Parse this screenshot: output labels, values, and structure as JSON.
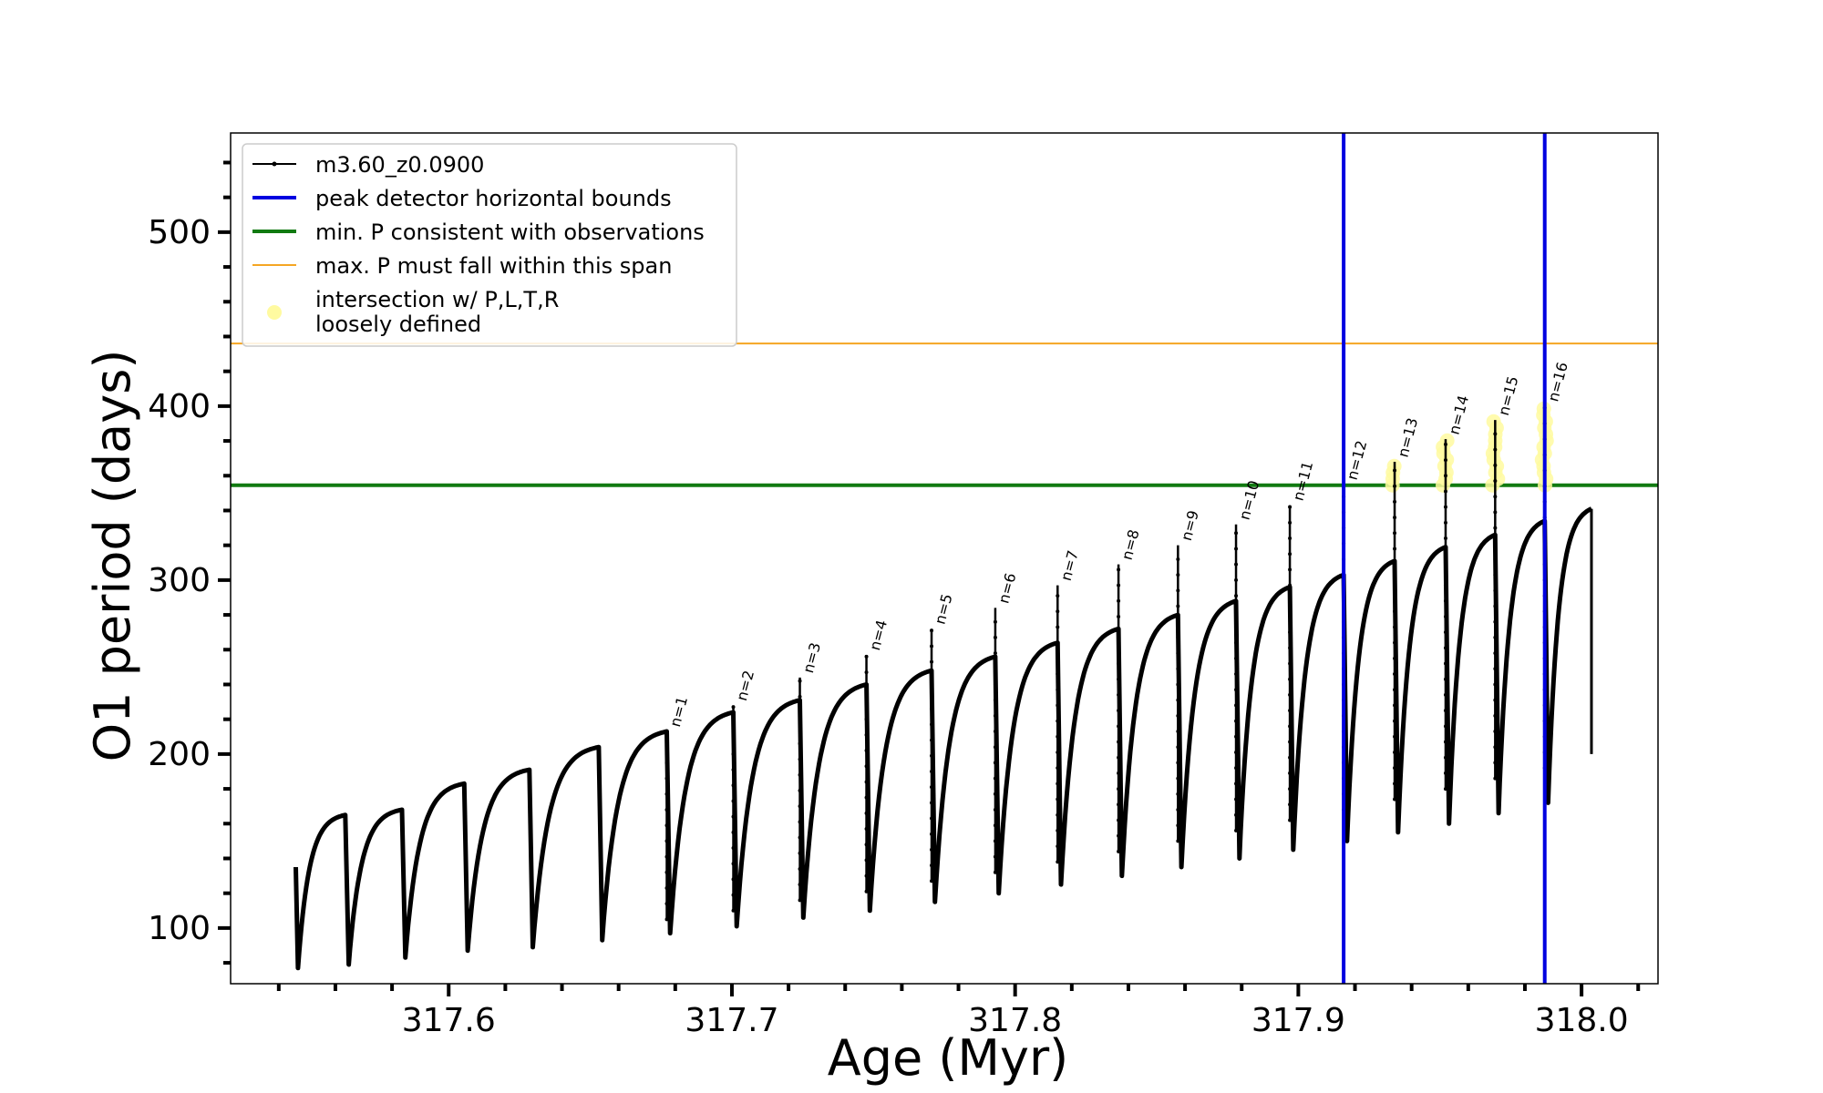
{
  "chart_data": {
    "type": "line",
    "xlabel": "Age (Myr)",
    "ylabel": "O1 period (days)",
    "xlim": [
      317.523,
      318.027
    ],
    "ylim": [
      68,
      557
    ],
    "x_ticks": [
      317.6,
      317.7,
      317.8,
      317.9,
      318.0
    ],
    "x_tick_labels": [
      "317.6",
      "317.7",
      "317.8",
      "317.9",
      "318.0"
    ],
    "y_ticks": [
      100,
      200,
      300,
      400,
      500
    ],
    "y_tick_labels": [
      "100",
      "200",
      "300",
      "400",
      "500"
    ],
    "legend": {
      "placement": "top-left",
      "entries": [
        {
          "label": "m3.60_z0.0900",
          "style": "line-marker",
          "color": "#000000"
        },
        {
          "label": "peak detector horizontal bounds",
          "style": "line",
          "color": "#0000e0"
        },
        {
          "label": "min. P consistent with observations",
          "style": "line",
          "color": "#117a11"
        },
        {
          "label": "max. P must fall within this span",
          "style": "line",
          "color": "#f5a623"
        },
        {
          "label": "intersection w/ P,L,T,R",
          "label2": "loosely defined",
          "style": "marker",
          "color": "#fffaa0"
        }
      ]
    },
    "vertical_lines": {
      "color": "#0000e0",
      "x": [
        317.916,
        317.987
      ]
    },
    "horizontal_lines": [
      {
        "y": 354.5,
        "color": "#117a11"
      },
      {
        "y": 436,
        "color": "#f5a623"
      }
    ],
    "series": [
      {
        "name": "m3.60_z0.0900",
        "color": "#000000",
        "start_x": 317.546,
        "start_y": 135,
        "cycles": [
          {
            "end": 317.5635,
            "min": 77,
            "max": 165,
            "rise": 80,
            "low": 80
          },
          {
            "end": 317.5835,
            "min": 79,
            "max": 168,
            "rise": 81,
            "low": 81
          },
          {
            "end": 317.6055,
            "min": 83,
            "max": 183,
            "rise": 85,
            "low": 85
          },
          {
            "end": 317.6285,
            "min": 87,
            "max": 191,
            "rise": 89,
            "low": 89
          },
          {
            "end": 317.653,
            "min": 89,
            "max": 204,
            "rise": 91,
            "low": 91
          },
          {
            "end": 317.677,
            "min": 93,
            "max": 213,
            "rise": 95,
            "low": 95
          },
          {
            "end": 317.7005,
            "min": 97,
            "max": 224,
            "rise": 99,
            "low": 99
          },
          {
            "end": 317.724,
            "min": 101,
            "max": 231,
            "rise": 103,
            "low": 103
          },
          {
            "end": 317.7475,
            "min": 106,
            "max": 240,
            "rise": 108,
            "low": 108
          },
          {
            "end": 317.7705,
            "min": 110,
            "max": 248,
            "rise": 112,
            "low": 112
          },
          {
            "end": 317.793,
            "min": 115,
            "max": 256,
            "rise": 117,
            "low": 117
          },
          {
            "end": 317.815,
            "min": 120,
            "max": 264,
            "rise": 122,
            "low": 122
          },
          {
            "end": 317.8365,
            "min": 125,
            "max": 272,
            "rise": 127,
            "low": 127
          },
          {
            "end": 317.8575,
            "min": 130,
            "max": 280,
            "rise": 132,
            "low": 132
          },
          {
            "end": 317.878,
            "min": 135,
            "max": 288,
            "rise": 137,
            "low": 137
          },
          {
            "end": 317.897,
            "min": 140,
            "max": 296,
            "rise": 142,
            "low": 142
          },
          {
            "end": 317.916,
            "min": 145,
            "max": 303,
            "rise": 147,
            "low": 147
          },
          {
            "end": 317.934,
            "min": 150,
            "max": 311,
            "rise": 152,
            "low": 152
          },
          {
            "end": 317.952,
            "min": 155,
            "max": 319,
            "rise": 157,
            "low": 157
          },
          {
            "end": 317.9695,
            "min": 160,
            "max": 326,
            "rise": 162,
            "low": 162
          },
          {
            "end": 317.987,
            "min": 166,
            "max": 334,
            "rise": 168,
            "low": 168
          },
          {
            "end": 318.0035,
            "min": 172,
            "max": 341,
            "rise": 172,
            "low": 200
          }
        ],
        "end_y": 200
      }
    ],
    "spikes": [
      {
        "label": "n=1",
        "x": 317.677,
        "top": 213,
        "bottom": 105
      },
      {
        "label": "n=2",
        "x": 317.7005,
        "top": 228,
        "bottom": 110
      },
      {
        "label": "n=3",
        "x": 317.724,
        "top": 244,
        "bottom": 116
      },
      {
        "label": "n=4",
        "x": 317.7475,
        "top": 257,
        "bottom": 121
      },
      {
        "label": "n=5",
        "x": 317.7705,
        "top": 272,
        "bottom": 127
      },
      {
        "label": "n=6",
        "x": 317.793,
        "top": 284,
        "bottom": 132
      },
      {
        "label": "n=7",
        "x": 317.815,
        "top": 297,
        "bottom": 138
      },
      {
        "label": "n=8",
        "x": 317.8365,
        "top": 309,
        "bottom": 144
      },
      {
        "label": "n=9",
        "x": 317.8575,
        "top": 320,
        "bottom": 150
      },
      {
        "label": "n=10",
        "x": 317.878,
        "top": 332,
        "bottom": 156
      },
      {
        "label": "n=11",
        "x": 317.897,
        "top": 343,
        "bottom": 162
      },
      {
        "label": "n=12",
        "x": 317.916,
        "top": 355,
        "bottom": 168
      },
      {
        "label": "n=13",
        "x": 317.934,
        "top": 368,
        "bottom": 174
      },
      {
        "label": "n=14",
        "x": 317.952,
        "top": 381,
        "bottom": 180
      },
      {
        "label": "n=15",
        "x": 317.9695,
        "top": 392,
        "bottom": 186
      },
      {
        "label": "n=16",
        "x": 317.987,
        "top": 400,
        "bottom": 192
      }
    ],
    "highlighted_spikes": [
      "n=13",
      "n=14",
      "n=15",
      "n=16"
    ]
  }
}
